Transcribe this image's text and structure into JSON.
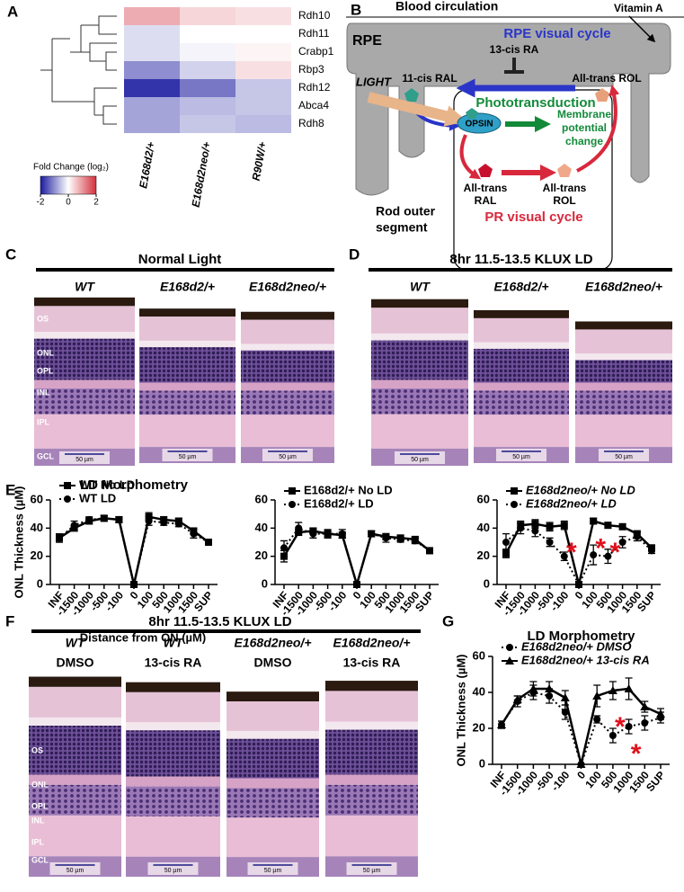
{
  "panel_labels": [
    "A",
    "B",
    "C",
    "D",
    "E",
    "F",
    "G"
  ],
  "chart_data": [
    {
      "type": "heatmap",
      "rows": [
        "Rdh10",
        "Rdh11",
        "Crabp1",
        "Rbp3",
        "Rdh12",
        "Abca4",
        "Rdh8"
      ],
      "columns": [
        "E168d2/+",
        "E168d2neo/+",
        "R90W/+"
      ],
      "values": [
        [
          0.8,
          0.4,
          0.3
        ],
        [
          -0.3,
          0,
          0
        ],
        [
          -0.3,
          -0.1,
          0.1
        ],
        [
          -1,
          -0.4,
          0.3
        ],
        [
          -1.8,
          -1.2,
          -0.5
        ],
        [
          -0.8,
          -0.6,
          -0.5
        ],
        [
          -0.8,
          -0.5,
          -0.6
        ]
      ],
      "colorbar_title": "Fold Change (log₂)",
      "clim": [
        -2,
        2
      ],
      "cticks": [
        -2,
        0,
        2
      ],
      "colors": [
        "#1c1ca0",
        "#ffffff",
        "#d3303c"
      ]
    },
    {
      "type": "line",
      "title": "LD Morphometry",
      "ylabel": "ONL Thickness (µM)",
      "xlabel": "Distance from ON (µM)",
      "categories": [
        "INF",
        "-1500",
        "-1000",
        "-500",
        "-100",
        "0",
        "100",
        "500",
        "1000",
        "1500",
        "SUP"
      ],
      "ylim": [
        0,
        60
      ],
      "yticks": [
        0,
        20,
        40,
        60
      ],
      "legend": "upper left",
      "series": [
        {
          "name": "WT No LD",
          "color": "#000000",
          "marker": "square",
          "dashed": false,
          "values": [
            33,
            40,
            45,
            47,
            46,
            0,
            48,
            46,
            45,
            38,
            30
          ],
          "errors": [
            3,
            2,
            2,
            2,
            2,
            0,
            3,
            2,
            2,
            2,
            2
          ]
        },
        {
          "name": "WT LD",
          "color": "#000000",
          "marker": "circle",
          "dashed": true,
          "values": [
            33,
            42,
            46,
            47,
            46,
            0,
            45,
            44,
            43,
            36,
            30
          ],
          "errors": [
            3,
            3,
            2,
            2,
            2,
            0,
            3,
            2,
            2,
            3,
            2
          ]
        }
      ],
      "annotations": []
    },
    {
      "type": "line",
      "categories": [
        "INF",
        "-1500",
        "-1000",
        "-500",
        "-100",
        "0",
        "100",
        "500",
        "1000",
        "1500",
        "SUP"
      ],
      "ylim": [
        0,
        60
      ],
      "yticks": [
        0,
        20,
        40,
        60
      ],
      "legend": "upper left",
      "series": [
        {
          "name": "E168d2/+ No LD",
          "color": "#000000",
          "marker": "square",
          "dashed": false,
          "values": [
            20,
            37,
            38,
            36,
            35,
            0,
            36,
            34,
            33,
            32,
            24
          ],
          "errors": [
            4,
            2,
            2,
            2,
            2,
            0,
            2,
            2,
            2,
            2,
            2
          ]
        },
        {
          "name": "E168d2/+ LD",
          "color": "#000000",
          "marker": "circle",
          "dashed": true,
          "values": [
            26,
            40,
            36,
            36,
            36,
            0,
            36,
            33,
            32,
            31,
            24
          ],
          "errors": [
            5,
            4,
            3,
            3,
            3,
            0,
            2,
            3,
            2,
            2,
            2
          ]
        }
      ],
      "annotations": []
    },
    {
      "type": "line",
      "categories": [
        "INF",
        "-1500",
        "-1000",
        "-500",
        "-100",
        "0",
        "100",
        "500",
        "1000",
        "1500",
        "SUP"
      ],
      "ylim": [
        0,
        60
      ],
      "yticks": [
        0,
        20,
        40,
        60
      ],
      "legend": "upper left",
      "series": [
        {
          "name": "E168d2neo/+ No LD",
          "color": "#000000",
          "marker": "square",
          "dashed": false,
          "values": [
            22,
            42,
            43,
            41,
            42,
            0,
            45,
            42,
            41,
            36,
            26
          ],
          "errors": [
            3,
            3,
            3,
            3,
            3,
            0,
            2,
            2,
            2,
            2,
            2
          ]
        },
        {
          "name": "E168d2neo/+ LD",
          "color": "#000000",
          "marker": "circle",
          "dashed": true,
          "values": [
            30,
            40,
            38,
            30,
            20,
            0,
            21,
            20,
            30,
            34,
            24
          ],
          "errors": [
            6,
            4,
            4,
            3,
            3,
            0,
            7,
            5,
            4,
            3,
            2
          ]
        }
      ],
      "annotations": [
        {
          "text": "*",
          "category": "-100",
          "color": "#e0101c"
        },
        {
          "text": "*",
          "category": "100",
          "color": "#e0101c"
        },
        {
          "text": "*",
          "category": "500",
          "color": "#e0101c"
        }
      ]
    },
    {
      "type": "line",
      "title": "LD Morphometry",
      "ylabel": "ONL Thickness (µM)",
      "categories": [
        "INF",
        "-1500",
        "-1000",
        "-500",
        "-100",
        "0",
        "100",
        "500",
        "1000",
        "1500",
        "SUP"
      ],
      "ylim": [
        0,
        60
      ],
      "yticks": [
        0,
        20,
        40,
        60
      ],
      "legend": "upper left",
      "series": [
        {
          "name": "E168d2neo/+ DMSO",
          "color": "#000000",
          "marker": "circle",
          "dashed": true,
          "values": [
            22,
            35,
            40,
            38,
            29,
            0,
            25,
            16,
            21,
            23,
            26
          ],
          "errors": [
            2,
            3,
            4,
            4,
            4,
            0,
            2,
            4,
            4,
            4,
            3
          ]
        },
        {
          "name": "E168d2neo/+ 13-cis RA",
          "color": "#000000",
          "marker": "triangle",
          "dashed": false,
          "values": [
            22,
            36,
            42,
            42,
            37,
            0,
            38,
            41,
            42,
            32,
            28
          ],
          "errors": [
            2,
            2,
            4,
            4,
            4,
            0,
            6,
            5,
            6,
            3,
            3
          ]
        }
      ],
      "annotations": [
        {
          "text": "*",
          "category": "500",
          "color": "#e0101c"
        },
        {
          "text": "*",
          "category": "1000",
          "color": "#e0101c"
        }
      ]
    }
  ],
  "diagram": {
    "blood": "Blood circulation",
    "vitamin": "Vitamin A",
    "rpe": "RPE",
    "rpe_cycle": "RPE visual cycle",
    "ra": "13-cis RA",
    "cis_ral": "11-cis RAL",
    "trans_rol_rpe": "All-trans ROL",
    "light": "LIGHT",
    "photo": "Phototransduction",
    "opsin": "OPSIN",
    "membrane": [
      "Membrane",
      "potential",
      "change"
    ],
    "trans_ral": [
      "All-trans",
      "RAL"
    ],
    "trans_rol": [
      "All-trans",
      "ROL"
    ],
    "rod": [
      "Rod outer",
      "segment"
    ],
    "pr_cycle": "PR visual cycle"
  },
  "histology": [
    {
      "title": "Normal Light",
      "columns": [
        [
          "WT"
        ],
        [
          "E168d2/+"
        ],
        [
          "E168d2neo/+"
        ]
      ],
      "layers": [
        "OS",
        "ONL",
        "OPL",
        "INL",
        "IPL",
        "GCL"
      ],
      "scale": "50 µm"
    },
    {
      "title": "8hr 11.5-13.5 KLUX LD",
      "columns": [
        [
          "WT"
        ],
        [
          "E168d2/+"
        ],
        [
          "E168d2neo/+"
        ]
      ],
      "scale": "50 µm"
    },
    {
      "title": "8hr 11.5-13.5 KLUX LD",
      "columns": [
        [
          "WT",
          "DMSO"
        ],
        [
          "WT",
          "13-cis RA"
        ],
        [
          "E168d2neo/+",
          "DMSO"
        ],
        [
          "E168d2neo/+",
          "13-cis RA"
        ]
      ],
      "layers": [
        "OS",
        "ONL",
        "OPL",
        "INL",
        "IPL",
        "GCL"
      ],
      "scale": "50 µm"
    }
  ]
}
